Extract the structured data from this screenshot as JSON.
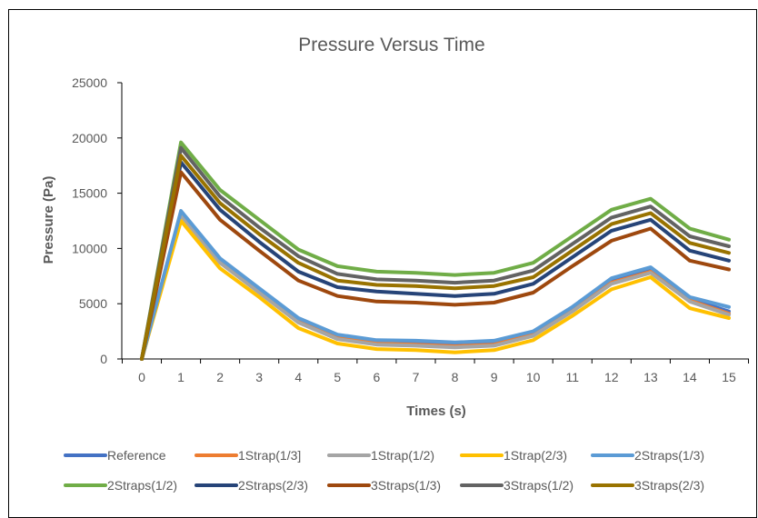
{
  "chart_data": {
    "type": "line",
    "title": "Pressure Versus Time",
    "xlabel": "Times (s)",
    "ylabel": "Pressure (Pa)",
    "categories": [
      "0",
      "1",
      "2",
      "3",
      "4",
      "5",
      "6",
      "7",
      "8",
      "9",
      "10",
      "11",
      "12",
      "13",
      "14",
      "15"
    ],
    "ylim": [
      0,
      25000
    ],
    "yticks": [
      0,
      5000,
      10000,
      15000,
      20000,
      25000
    ],
    "grid": false,
    "legend_position": "bottom",
    "series": [
      {
        "name": "Reference",
        "color": "#4472C4",
        "values": [
          0,
          13200,
          8900,
          6200,
          3500,
          2000,
          1500,
          1400,
          1250,
          1400,
          2300,
          4500,
          7000,
          8000,
          5400,
          4300
        ]
      },
      {
        "name": "1Strap(1/3]",
        "color": "#ED7D31",
        "values": [
          0,
          13100,
          8800,
          6100,
          3400,
          1900,
          1400,
          1300,
          1150,
          1300,
          2200,
          4400,
          6900,
          7900,
          5300,
          4100
        ]
      },
      {
        "name": "1Strap(1/2)",
        "color": "#A5A5A5",
        "values": [
          0,
          13000,
          8700,
          6000,
          3300,
          1800,
          1300,
          1200,
          1050,
          1200,
          2100,
          4300,
          6800,
          7800,
          5200,
          4000
        ]
      },
      {
        "name": "1Strap(2/3)",
        "color": "#FFC000",
        "values": [
          0,
          12500,
          8200,
          5600,
          2800,
          1400,
          900,
          800,
          600,
          800,
          1700,
          3900,
          6300,
          7400,
          4600,
          3700
        ]
      },
      {
        "name": "2Straps(1/3)",
        "color": "#5B9BD5",
        "values": [
          0,
          13400,
          9100,
          6400,
          3700,
          2200,
          1700,
          1650,
          1500,
          1650,
          2500,
          4700,
          7300,
          8300,
          5600,
          4700
        ]
      },
      {
        "name": "2Straps(1/2)",
        "color": "#70AD47",
        "values": [
          0,
          19600,
          15300,
          12600,
          9900,
          8400,
          7900,
          7800,
          7600,
          7800,
          8700,
          11100,
          13500,
          14500,
          11800,
          10800
        ]
      },
      {
        "name": "2Straps(2/3)",
        "color": "#264478",
        "values": [
          0,
          17800,
          13500,
          10600,
          7900,
          6500,
          6100,
          5900,
          5700,
          5900,
          6800,
          9200,
          11600,
          12600,
          9800,
          8900
        ]
      },
      {
        "name": "3Straps(1/3)",
        "color": "#9E480E",
        "values": [
          0,
          16900,
          12600,
          9800,
          7100,
          5700,
          5200,
          5100,
          4900,
          5100,
          6000,
          8400,
          10700,
          11800,
          8900,
          8100
        ]
      },
      {
        "name": "3Straps(1/2)",
        "color": "#636363",
        "values": [
          0,
          19100,
          14700,
          11900,
          9300,
          7700,
          7200,
          7100,
          6900,
          7100,
          8000,
          10400,
          12800,
          13800,
          11100,
          10200
        ]
      },
      {
        "name": "3Straps(2/3)",
        "color": "#997300",
        "values": [
          0,
          18400,
          14100,
          11300,
          8700,
          7100,
          6700,
          6600,
          6400,
          6600,
          7400,
          9800,
          12200,
          13200,
          10500,
          9600
        ]
      }
    ]
  }
}
